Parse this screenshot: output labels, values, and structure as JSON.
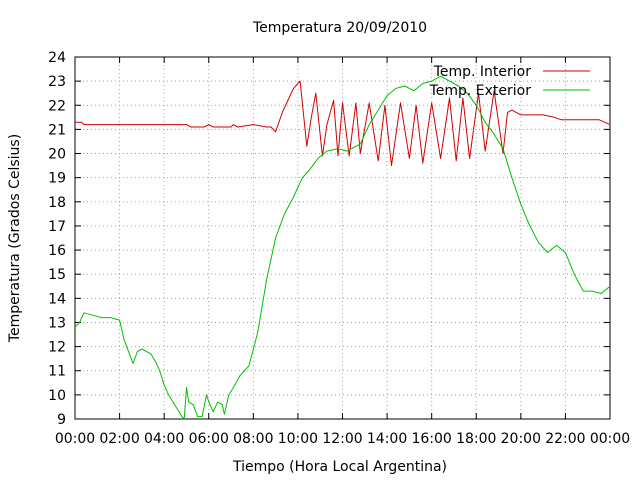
{
  "chart_data": {
    "type": "line",
    "title": "Temperatura 20/09/2010",
    "xlabel": "Tiempo (Hora Local Argentina)",
    "ylabel": "Temperatura (Grados Celsius)",
    "xlim": [
      0,
      24
    ],
    "ylim": [
      9,
      24
    ],
    "x_ticks": [
      {
        "value": 0,
        "label": "00:00"
      },
      {
        "value": 2,
        "label": "02:00"
      },
      {
        "value": 4,
        "label": "04:00"
      },
      {
        "value": 6,
        "label": "06:00"
      },
      {
        "value": 8,
        "label": "08:00"
      },
      {
        "value": 10,
        "label": "10:00"
      },
      {
        "value": 12,
        "label": "12:00"
      },
      {
        "value": 14,
        "label": "14:00"
      },
      {
        "value": 16,
        "label": "16:00"
      },
      {
        "value": 18,
        "label": "18:00"
      },
      {
        "value": 20,
        "label": "20:00"
      },
      {
        "value": 22,
        "label": "22:00"
      },
      {
        "value": 24,
        "label": "00:00"
      }
    ],
    "y_ticks": [
      9,
      10,
      11,
      12,
      13,
      14,
      15,
      16,
      17,
      18,
      19,
      20,
      21,
      22,
      23,
      24
    ],
    "grid": true,
    "legend_position": "top-right",
    "series": [
      {
        "name": "Temp. Interior",
        "color": "#d00000",
        "x": [
          0,
          0.3,
          0.4,
          1,
          2,
          3,
          4,
          5,
          5.2,
          5.8,
          6,
          6.2,
          7,
          7.1,
          7.3,
          8,
          8.6,
          8.8,
          9,
          9.3,
          9.6,
          9.8,
          10,
          10.1,
          10.4,
          10.6,
          10.8,
          11.1,
          11.3,
          11.6,
          11.8,
          12.0,
          12.3,
          12.6,
          12.8,
          13.2,
          13.6,
          13.9,
          14.2,
          14.6,
          15.0,
          15.3,
          15.6,
          16.0,
          16.4,
          16.8,
          17.1,
          17.4,
          17.7,
          18.1,
          18.4,
          18.8,
          19.2,
          19.4,
          19.6,
          20,
          20.5,
          21,
          21.5,
          21.8,
          22,
          23,
          23.5,
          24
        ],
        "y": [
          21.3,
          21.3,
          21.2,
          21.2,
          21.2,
          21.2,
          21.2,
          21.2,
          21.1,
          21.1,
          21.2,
          21.1,
          21.1,
          21.2,
          21.1,
          21.2,
          21.1,
          21.1,
          20.9,
          21.7,
          22.3,
          22.7,
          22.9,
          23.0,
          20.3,
          21.5,
          22.5,
          19.9,
          21.2,
          22.2,
          19.9,
          22.1,
          19.9,
          22.1,
          20.0,
          22.1,
          19.7,
          22.0,
          19.5,
          22.1,
          19.8,
          22.0,
          19.6,
          22.1,
          19.8,
          22.3,
          19.7,
          22.3,
          19.8,
          22.5,
          20.1,
          22.6,
          20.0,
          21.7,
          21.8,
          21.6,
          21.6,
          21.6,
          21.5,
          21.4,
          21.4,
          21.4,
          21.4,
          21.2
        ]
      },
      {
        "name": "Temp. Exterior",
        "color": "#00c000",
        "x": [
          0,
          0.2,
          0.4,
          0.8,
          1.2,
          1.6,
          2.0,
          2.2,
          2.4,
          2.6,
          2.8,
          3.0,
          3.2,
          3.4,
          3.6,
          3.8,
          4.0,
          4.2,
          4.4,
          4.6,
          4.8,
          4.9,
          5.0,
          5.1,
          5.3,
          5.5,
          5.7,
          5.9,
          6.0,
          6.2,
          6.4,
          6.6,
          6.7,
          6.9,
          7.1,
          7.4,
          7.8,
          8.2,
          8.6,
          9.0,
          9.4,
          9.8,
          10.0,
          10.2,
          10.5,
          10.9,
          11.3,
          11.8,
          12.2,
          12.8,
          13.2,
          13.6,
          14.0,
          14.4,
          14.8,
          15.2,
          15.6,
          16.0,
          16.4,
          16.8,
          17.2,
          17.6,
          18.0,
          18.4,
          18.8,
          19.2,
          19.6,
          20.0,
          20.4,
          20.8,
          21.2,
          21.6,
          22.0,
          22.4,
          22.8,
          23.2,
          23.6,
          24.0
        ],
        "y": [
          12.8,
          13.0,
          13.4,
          13.3,
          13.2,
          13.2,
          13.1,
          12.3,
          11.8,
          11.3,
          11.8,
          11.9,
          11.8,
          11.7,
          11.4,
          11.0,
          10.4,
          10.0,
          9.7,
          9.4,
          9.1,
          9.0,
          10.3,
          9.7,
          9.6,
          9.1,
          9.1,
          10.0,
          9.7,
          9.3,
          9.7,
          9.6,
          9.2,
          10.0,
          10.3,
          10.8,
          11.2,
          12.6,
          14.8,
          16.5,
          17.5,
          18.2,
          18.6,
          19.0,
          19.3,
          19.8,
          20.1,
          20.2,
          20.1,
          20.4,
          21.2,
          21.8,
          22.4,
          22.7,
          22.8,
          22.6,
          22.9,
          23.0,
          23.2,
          23.0,
          22.8,
          22.5,
          22.0,
          21.3,
          20.8,
          20.2,
          19.0,
          17.9,
          17.0,
          16.3,
          15.9,
          16.2,
          15.9,
          15.0,
          14.3,
          14.3,
          14.2,
          14.5
        ]
      }
    ]
  }
}
